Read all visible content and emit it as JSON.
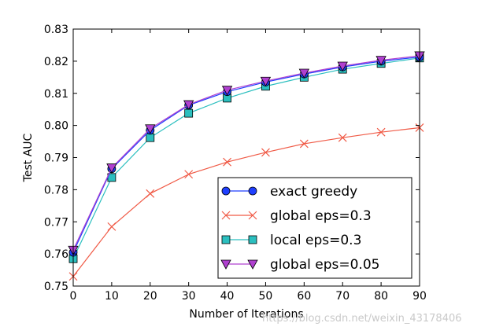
{
  "chart_data": {
    "type": "line",
    "title": "",
    "xlabel": "Number of Iterations",
    "ylabel": "Test AUC",
    "xlim": [
      0,
      90
    ],
    "ylim": [
      0.75,
      0.83
    ],
    "xticks": [
      0,
      10,
      20,
      30,
      40,
      50,
      60,
      70,
      80,
      90
    ],
    "yticks": [
      0.75,
      0.76,
      0.77,
      0.78,
      0.79,
      0.8,
      0.81,
      0.82,
      0.83
    ],
    "ytick_labels": [
      "0.75",
      "0.76",
      "0.77",
      "0.78",
      "0.79",
      "0.80",
      "0.81",
      "0.82",
      "0.83"
    ],
    "grid": false,
    "legend_position": "lower-right",
    "x": [
      0,
      10,
      20,
      30,
      40,
      50,
      60,
      70,
      80,
      90
    ],
    "series": [
      {
        "name": "exact greedy",
        "color": "#1f3fff",
        "marker": "circle",
        "values": [
          0.7605,
          0.7865,
          0.7985,
          0.8063,
          0.8105,
          0.8135,
          0.816,
          0.8182,
          0.82,
          0.8213
        ]
      },
      {
        "name": "global eps=0.3",
        "color": "#f05a46",
        "marker": "x",
        "values": [
          0.753,
          0.7685,
          0.7788,
          0.7848,
          0.7886,
          0.7916,
          0.7943,
          0.7962,
          0.7979,
          0.7993
        ]
      },
      {
        "name": "local eps=0.3",
        "color": "#2bbfbf",
        "marker": "square",
        "values": [
          0.7585,
          0.7838,
          0.7962,
          0.8038,
          0.8085,
          0.8122,
          0.815,
          0.8175,
          0.8193,
          0.821
        ]
      },
      {
        "name": "global eps=0.05",
        "color": "#b040d0",
        "marker": "triangle-down",
        "values": [
          0.7612,
          0.7868,
          0.799,
          0.8065,
          0.811,
          0.8138,
          0.8163,
          0.8185,
          0.8203,
          0.8217
        ]
      }
    ]
  },
  "watermark": "https://blog.csdn.net/weixin_43178406"
}
